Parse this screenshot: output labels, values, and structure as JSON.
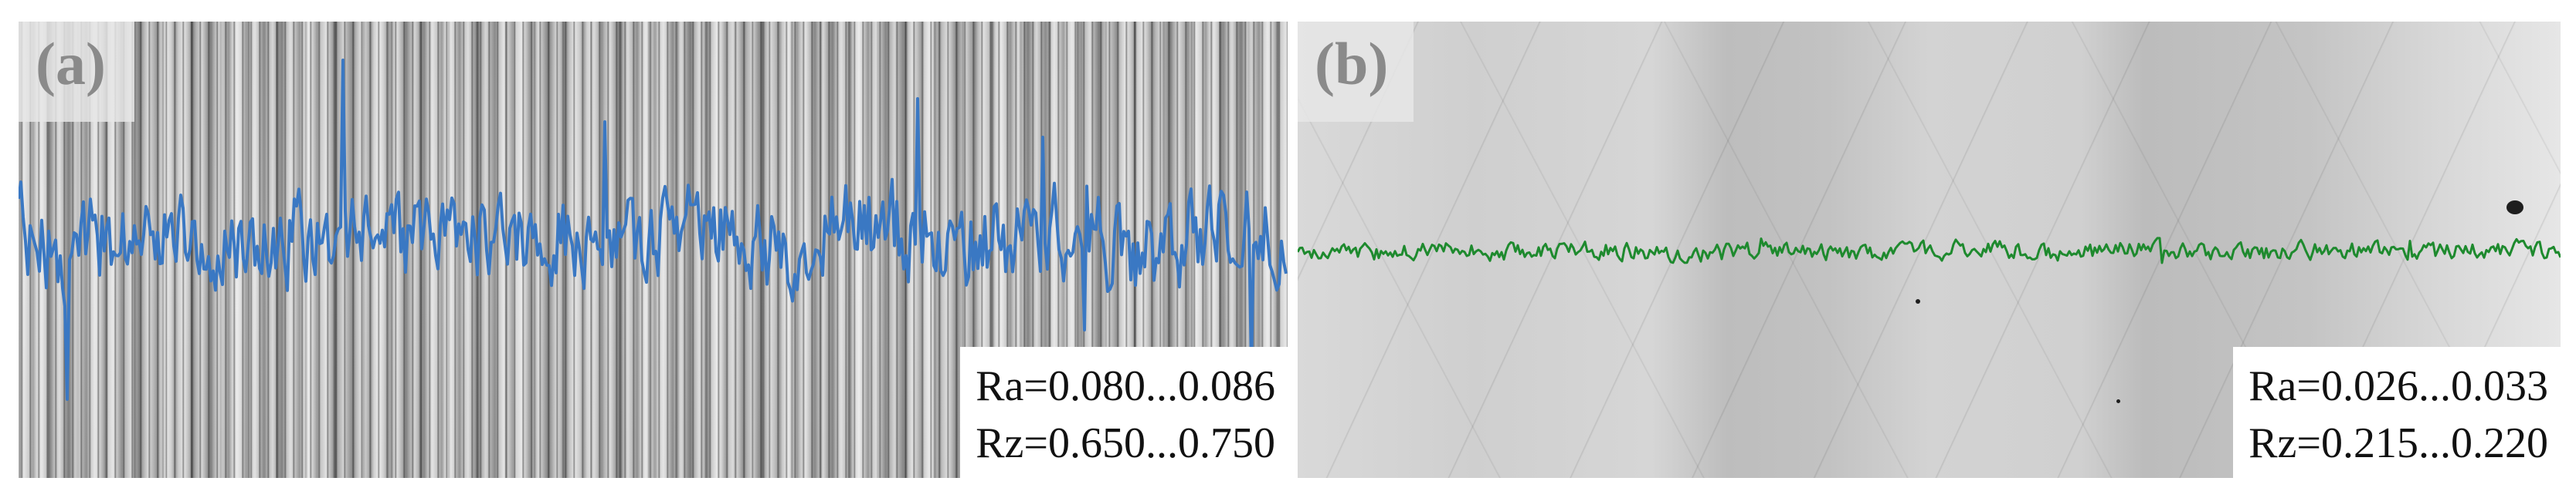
{
  "panels": [
    {
      "label": "(a)",
      "ra": "Ra=0.080...0.086",
      "rz": "Rz=0.650...0.750",
      "profile_color": "#3a78c3",
      "surface": "rough-streaked",
      "relative_amplitude": 1.0
    },
    {
      "label": "(b)",
      "ra": "Ra=0.026...0.033",
      "rz": "Rz=0.215...0.220",
      "profile_color": "#1e8a2e",
      "surface": "smooth-polished",
      "relative_amplitude": 0.3
    }
  ]
}
